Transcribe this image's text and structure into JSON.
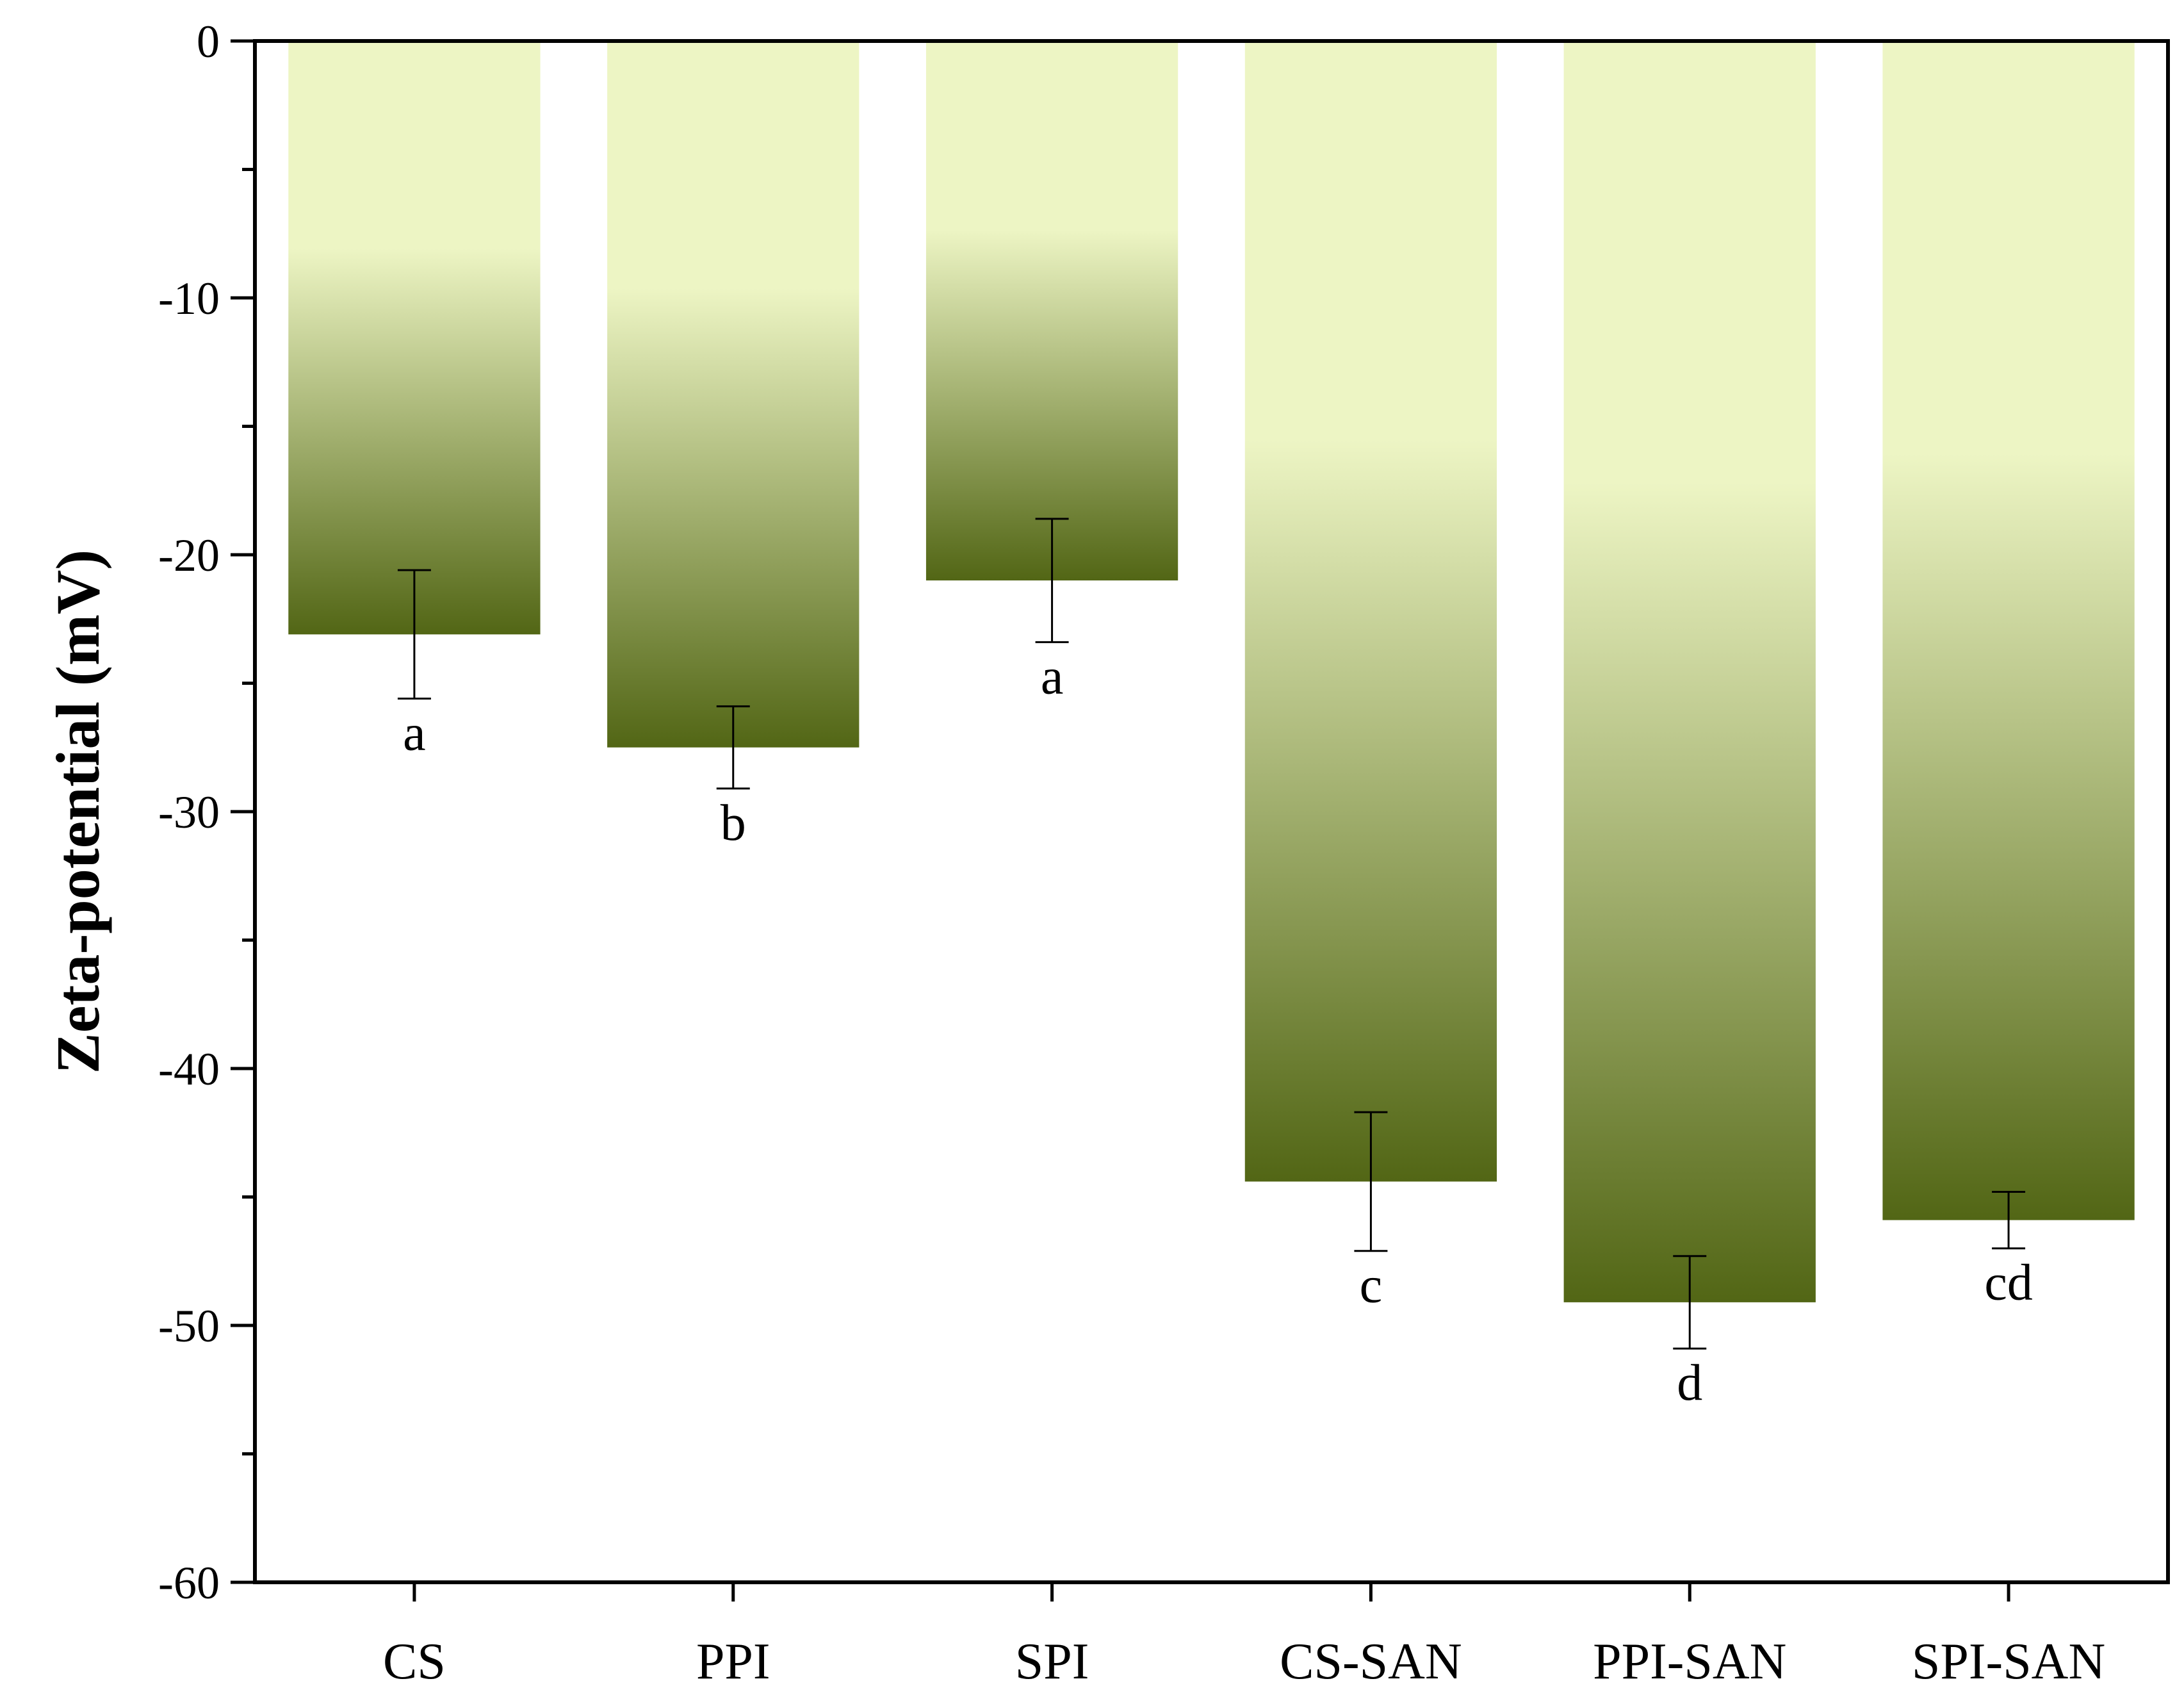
{
  "chart_data": {
    "type": "bar",
    "title": "",
    "xlabel": "",
    "ylabel": "Zeta-potential (mV)",
    "ylim": [
      -60,
      0
    ],
    "yticks": [
      0,
      -10,
      -20,
      -30,
      -40,
      -50,
      -60
    ],
    "ytick_labels": [
      "0",
      "-10",
      "-20",
      "-30",
      "-40",
      "-50",
      "-60"
    ],
    "minor_ytick_step": 5,
    "categories": [
      "CS",
      "PPI",
      "SPI",
      "CS-SAN",
      "PPI-SAN",
      "SPI-SAN"
    ],
    "values": [
      -23.1,
      -27.5,
      -21.0,
      -44.4,
      -49.1,
      -45.9
    ],
    "errors": [
      2.5,
      1.6,
      2.4,
      2.7,
      1.8,
      1.1
    ],
    "significance_letters": [
      "a",
      "b",
      "a",
      "c",
      "d",
      "cd"
    ],
    "grid": false,
    "colors": {
      "bar_top": "#edf5c4",
      "bar_bottom": "#526615",
      "axis": "#000000",
      "errorbar": "#000000"
    }
  }
}
